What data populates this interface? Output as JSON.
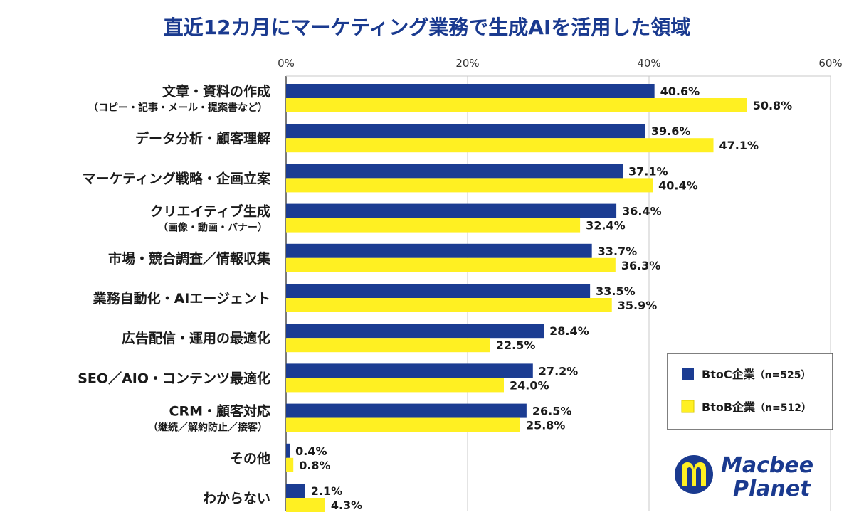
{
  "colors": {
    "btoc": "#1b3c92",
    "btob": "#fff022",
    "title": "#1a3a8f",
    "grid": "#c8c8c8"
  },
  "logo": {
    "line1": "Macbee",
    "line2": "Planet"
  },
  "chart_data": {
    "type": "bar",
    "orientation": "horizontal",
    "title": "直近12カ月にマーケティング業務で生成AIを活用した領域",
    "xlim": [
      0,
      60
    ],
    "x_ticks": [
      "0%",
      "20%",
      "40%",
      "60%"
    ],
    "categories": [
      {
        "label": "文章・資料の作成",
        "sub": "（コピー・記事・メール・提案書など）"
      },
      {
        "label": "データ分析・顧客理解",
        "sub": ""
      },
      {
        "label": "マーケティング戦略・企画立案",
        "sub": ""
      },
      {
        "label": "クリエイティブ生成",
        "sub": "（画像・動画・バナー）"
      },
      {
        "label": "市場・競合調査／情報収集",
        "sub": ""
      },
      {
        "label": "業務自動化・AIエージェント",
        "sub": ""
      },
      {
        "label": "広告配信・運用の最適化",
        "sub": ""
      },
      {
        "label": "SEO／AIO・コンテンツ最適化",
        "sub": ""
      },
      {
        "label": "CRM・顧客対応",
        "sub": "（継続／解約防止／接客）"
      },
      {
        "label": "その他",
        "sub": ""
      },
      {
        "label": "わからない",
        "sub": ""
      }
    ],
    "series": [
      {
        "name": "BtoC企業",
        "n_label": "（n=525）",
        "color": "#1b3c92",
        "values": [
          40.6,
          39.6,
          37.1,
          36.4,
          33.7,
          33.5,
          28.4,
          27.2,
          26.5,
          0.4,
          2.1
        ],
        "value_labels": [
          "40.6%",
          "39.6%",
          "37.1%",
          "36.4%",
          "33.7%",
          "33.5%",
          "28.4%",
          "27.2%",
          "26.5%",
          "0.4%",
          "2.1%"
        ]
      },
      {
        "name": "BtoB企業",
        "n_label": "（n=512）",
        "color": "#fff022",
        "values": [
          50.8,
          47.1,
          40.4,
          32.4,
          36.3,
          35.9,
          22.5,
          24.0,
          25.8,
          0.8,
          4.3
        ],
        "value_labels": [
          "50.8%",
          "47.1%",
          "40.4%",
          "32.4%",
          "36.3%",
          "35.9%",
          "22.5%",
          "24.0%",
          "25.8%",
          "0.8%",
          "4.3%"
        ]
      }
    ],
    "grid": true,
    "legend_position": "bottom-right"
  }
}
